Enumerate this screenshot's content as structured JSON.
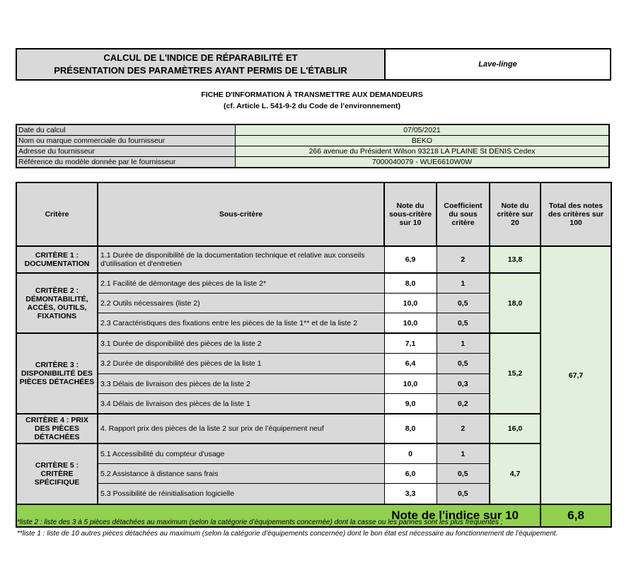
{
  "title": {
    "line1": "CALCUL DE L'INDICE DE RÉPARABILITÉ ET",
    "line2": "PRÉSENTATION DES PARAMÈTRES AYANT PERMIS DE L'ÉTABLIR",
    "product": "Lave-linge"
  },
  "subtitle": {
    "line1": "FICHE D'INFORMATION À TRANSMETTRE AUX DEMANDEURS",
    "line2": "(cf. Article L. 541-9-2 du Code de l’environnement)"
  },
  "info": [
    {
      "label": "Date du calcul",
      "value": "07/05/2021"
    },
    {
      "label": "Nom ou marque commerciale du fournisseur",
      "value": "BEKO"
    },
    {
      "label": "Adresse du fournisseur",
      "value": "266 avenue du Président Wilson 93218 LA PLAINE St DENIS Cedex"
    },
    {
      "label": "Référence du modèle donnée par le fournisseur",
      "value": "7000040079 - WUE6610W0W"
    }
  ],
  "headers": {
    "critere": "Critère",
    "sous_critere": "Sous-critère",
    "note": "Note du sous-critère sur 10",
    "coef": "Coefficient du sous critère",
    "note20": "Note du critère sur 20",
    "total": "Total des notes des critères sur 100"
  },
  "criteria": [
    {
      "name": "CRITÈRE 1 : DOCUMENTATION",
      "note20": "13,8",
      "subs": [
        {
          "label": "1.1 Durée de disponibilité de la documentation technique et relative aux conseils d'utilisation et d'entretien",
          "note": "6,9",
          "coef": "2"
        }
      ]
    },
    {
      "name": "CRITÈRE 2 : DÉMONTABILITÉ, ACCÈS, OUTILS, FIXATIONS",
      "note20": "18,0",
      "subs": [
        {
          "label": "2.1 Facilité de démontage des pièces de la liste 2*",
          "note": "8,0",
          "coef": "1"
        },
        {
          "label": "2.2 Outils nécessaires (liste 2)",
          "note": "10,0",
          "coef": "0,5"
        },
        {
          "label": "2.3 Caractéristiques des fixations entre les pièces de la liste 1** et de la liste 2",
          "note": "10,0",
          "coef": "0,5"
        }
      ]
    },
    {
      "name": "CRITÈRE 3 : DISPONIBILITÉ DES PIÈCES DÉTACHÉES",
      "note20": "15,2",
      "subs": [
        {
          "label": "3.1 Durée de disponibilité des pièces de la liste 2",
          "note": "7,1",
          "coef": "1"
        },
        {
          "label": "3.2 Durée de disponibilité des pièces de la liste 1",
          "note": "6,4",
          "coef": "0,5"
        },
        {
          "label": "3.3 Délais de livraison des pièces de la liste 2",
          "note": "10,0",
          "coef": "0,3"
        },
        {
          "label": "3.4 Délais de livraison des pièces de la liste 1",
          "note": "9,0",
          "coef": "0,2"
        }
      ]
    },
    {
      "name": "CRITÈRE 4 : PRIX DES PIÈCES DÉTACHÉES",
      "note20": "16,0",
      "subs": [
        {
          "label": "4. Rapport prix des pièces de la liste 2 sur prix de l’équipement neuf",
          "note": "8,0",
          "coef": "2"
        }
      ]
    },
    {
      "name": "CRITÈRE 5 : CRITÈRE SPÉCIFIQUE",
      "note20": "4,7",
      "subs": [
        {
          "label": "5.1 Accessibilité du compteur d'usage",
          "note": "0",
          "coef": "1"
        },
        {
          "label": "5.2 Assistance à distance sans frais",
          "note": "6,0",
          "coef": "0,5"
        },
        {
          "label": "5.3 Possibilité de réinitialisation logicielle",
          "note": "3,3",
          "coef": "0,5"
        }
      ]
    }
  ],
  "total": "67,7",
  "final": {
    "label": "Note de l'indice sur 10",
    "value": "6,8"
  },
  "footnotes": [
    "*liste 2 : liste des 3 à 5 pièces détachées au maximum (selon la catégorie d’équipements concernée) dont la casse ou les pannes sont les plus fréquentes ;",
    "**liste 1 : liste de 10 autres pièces détachées au maximum (selon la catégorie d’équipements concernée) dont le bon état est nécessaire au fonctionnement de l’équipement."
  ],
  "colors": {
    "gray": "#d9d9d9",
    "light_green": "#e2efda",
    "green": "#92d050"
  }
}
